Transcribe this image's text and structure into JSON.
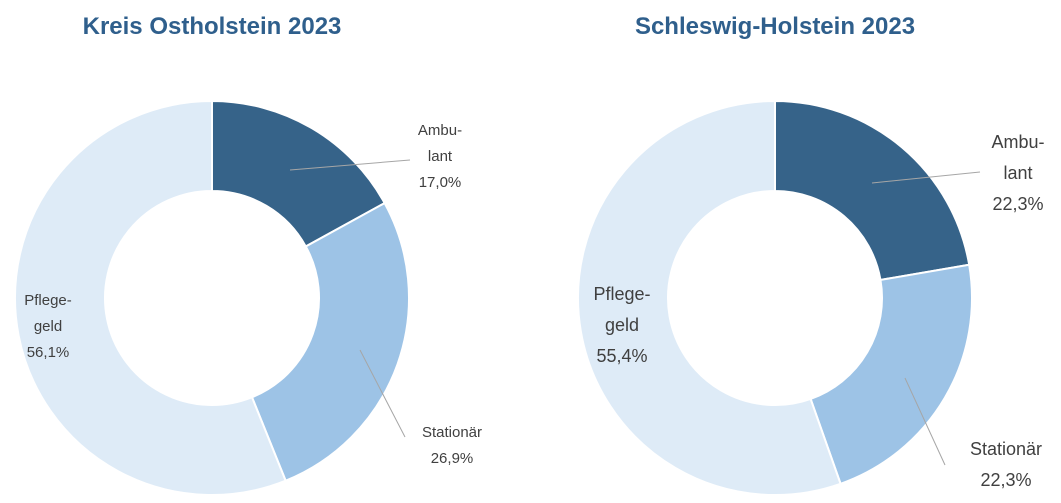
{
  "chart_data": [
    {
      "type": "donut",
      "title": "Kreis Ostholstein 2023",
      "categories": [
        "Ambu-\nlant",
        "Stationär",
        "Pflege-\ngeld"
      ],
      "values": [
        17.0,
        26.9,
        56.1
      ],
      "value_labels": [
        "17,0%",
        "26,9%",
        "56,1%"
      ],
      "colors": [
        "#366389",
        "#9dc3e6",
        "#deebf7"
      ]
    },
    {
      "type": "donut",
      "title": "Schleswig-Holstein 2023",
      "categories": [
        "Ambu-\nlant",
        "Stationär",
        "Pflege-\ngeld"
      ],
      "values": [
        22.3,
        22.3,
        55.4
      ],
      "value_labels": [
        "22,3%",
        "22,3%",
        "55,4%"
      ],
      "colors": [
        "#366389",
        "#9dc3e6",
        "#deebf7"
      ]
    }
  ]
}
